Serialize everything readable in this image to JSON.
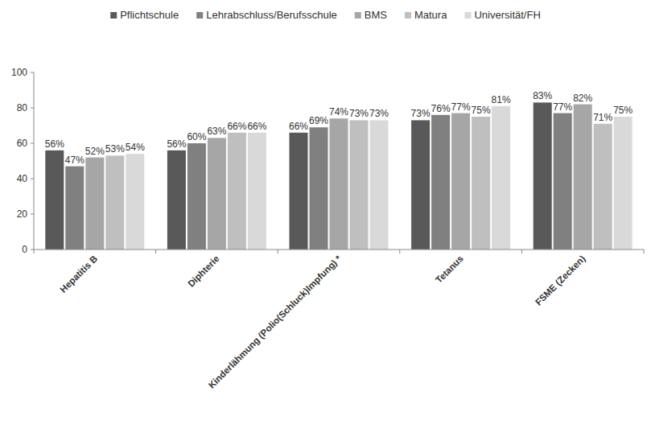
{
  "chart_data": {
    "type": "bar",
    "categories": [
      "Hepatitis B",
      "Diphterie",
      "Kinderlähmung (Polio(Schluck)Impfung) *",
      "Tetanus",
      "FSME (Zecken)"
    ],
    "series": [
      {
        "name": "Pflichtschule",
        "color": "#595959",
        "values": [
          56,
          56,
          66,
          73,
          83
        ],
        "value_labels": [
          "56%",
          "56%",
          "66%",
          "73%",
          "83%"
        ]
      },
      {
        "name": "Lehrabschluss/Berufsschule",
        "color": "#808080",
        "values": [
          47,
          60,
          69,
          76,
          77
        ],
        "value_labels": [
          "47%",
          "60%",
          "69%",
          "76%",
          "77%"
        ]
      },
      {
        "name": "BMS",
        "color": "#a6a6a6",
        "values": [
          52,
          63,
          74,
          77,
          82
        ],
        "value_labels": [
          "52%",
          "63%",
          "74%",
          "77%",
          "82%"
        ]
      },
      {
        "name": "Matura",
        "color": "#bfbfbf",
        "values": [
          53,
          66,
          73,
          75,
          71
        ],
        "value_labels": [
          "53%",
          "66%",
          "73%",
          "75%",
          "71%"
        ]
      },
      {
        "name": "Universität/FH",
        "color": "#d9d9d9",
        "values": [
          54,
          66,
          73,
          81,
          75
        ],
        "value_labels": [
          "54%",
          "66%",
          "73%",
          "81%",
          "75%"
        ]
      }
    ],
    "ylim": [
      0,
      100
    ],
    "yticks": [
      0,
      20,
      40,
      60,
      80,
      100
    ],
    "grid": false,
    "legend": "top",
    "data_labels": true
  }
}
